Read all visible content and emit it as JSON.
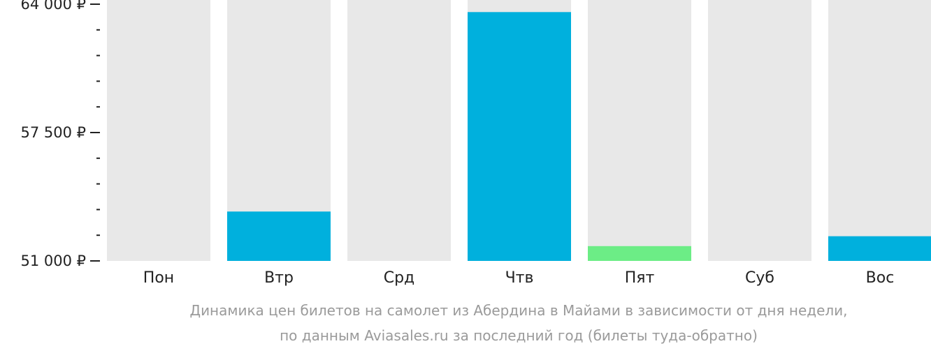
{
  "chart_data": {
    "type": "bar",
    "categories": [
      "Пон",
      "Втр",
      "Срд",
      "Чтв",
      "Пят",
      "Суб",
      "Вос"
    ],
    "values": [
      null,
      53500,
      null,
      63600,
      51750,
      null,
      52250
    ],
    "bar_colors": [
      null,
      "#00b0dd",
      null,
      "#00b0dd",
      "#6ced86",
      null,
      "#00b0dd"
    ],
    "background_bar_color": "#e8e8e8",
    "ylim": [
      51000,
      64000
    ],
    "y_major_ticks": [
      {
        "value": 51000,
        "label": "51 000 ₽"
      },
      {
        "value": 57500,
        "label": "57 500 ₽"
      },
      {
        "value": 64000,
        "label": "64 000 ₽"
      }
    ],
    "y_minor_ticks": [
      52300,
      53600,
      54900,
      56200,
      58800,
      60100,
      61400,
      62700
    ],
    "caption": [
      "Динамика цен билетов на самолет из Абердина в Майами в зависимости от дня недели,",
      "по данным Aviasales.ru за последний год (билеты туда-обратно)"
    ],
    "grid": false,
    "legend": "none"
  }
}
